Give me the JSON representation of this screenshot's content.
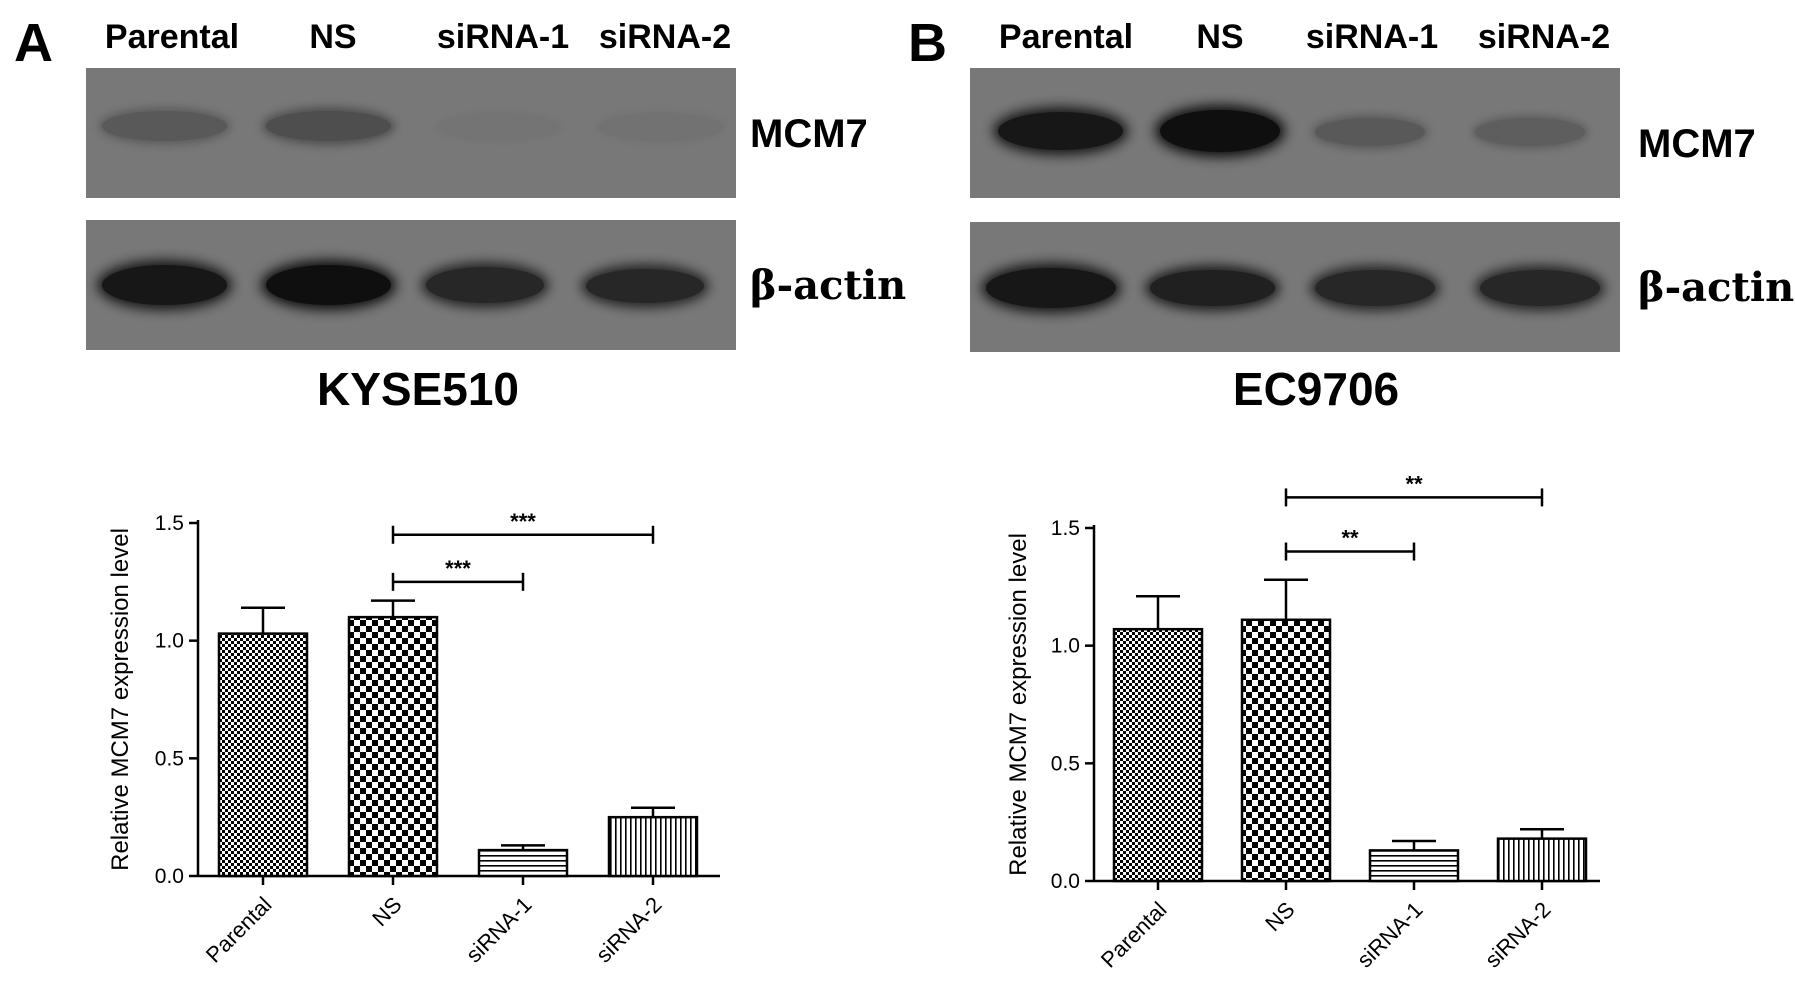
{
  "panels": [
    {
      "label": "A",
      "lanes": [
        "Parental",
        "NS",
        "siRNA-1",
        "siRNA-2"
      ],
      "blot_rows": [
        {
          "protein": "MCM7",
          "band_intensity": [
            0.45,
            0.55,
            0.08,
            0.12
          ]
        },
        {
          "protein": "β-actin",
          "band_intensity": [
            0.95,
            1.0,
            0.85,
            0.85
          ]
        }
      ],
      "cell_line": "KYSE510"
    },
    {
      "label": "B",
      "lanes": [
        "Parental",
        "NS",
        "siRNA-1",
        "siRNA-2"
      ],
      "blot_rows": [
        {
          "protein": "MCM7",
          "band_intensity": [
            0.95,
            1.0,
            0.45,
            0.4
          ]
        },
        {
          "protein": "β-actin",
          "band_intensity": [
            0.95,
            0.9,
            0.85,
            0.85
          ]
        }
      ],
      "cell_line": "EC9706"
    }
  ],
  "chart_data": [
    {
      "type": "bar",
      "categories": [
        "Parental",
        "NS",
        "siRNA-1",
        "siRNA-2"
      ],
      "values": [
        1.03,
        1.1,
        0.11,
        0.25
      ],
      "errors": [
        0.11,
        0.07,
        0.02,
        0.04
      ],
      "patterns": [
        "fine-check",
        "coarse-check",
        "horizontal-lines",
        "vertical-lines"
      ],
      "ylabel": "Relative MCM7 expression level",
      "xlabel": "",
      "ylim": [
        0,
        1.5
      ],
      "yticks": [
        "0.0",
        "0.5",
        "1.0",
        "1.5"
      ],
      "significance": [
        {
          "from": "NS",
          "to": "siRNA-1",
          "label": "***",
          "y": 1.25
        },
        {
          "from": "NS",
          "to": "siRNA-2",
          "label": "***",
          "y": 1.45
        }
      ]
    },
    {
      "type": "bar",
      "categories": [
        "Parental",
        "NS",
        "siRNA-1",
        "siRNA-2"
      ],
      "values": [
        1.07,
        1.11,
        0.13,
        0.18
      ],
      "errors": [
        0.14,
        0.17,
        0.04,
        0.04
      ],
      "patterns": [
        "fine-check",
        "coarse-check",
        "horizontal-lines",
        "vertical-lines"
      ],
      "ylabel": "Relative MCM7 expression level",
      "xlabel": "",
      "ylim": [
        0,
        1.5
      ],
      "yticks": [
        "0.0",
        "0.5",
        "1.0",
        "1.5"
      ],
      "significance": [
        {
          "from": "NS",
          "to": "siRNA-1",
          "label": "**",
          "y": 1.4
        },
        {
          "from": "NS",
          "to": "siRNA-2",
          "label": "**",
          "y": 1.63
        }
      ]
    }
  ]
}
